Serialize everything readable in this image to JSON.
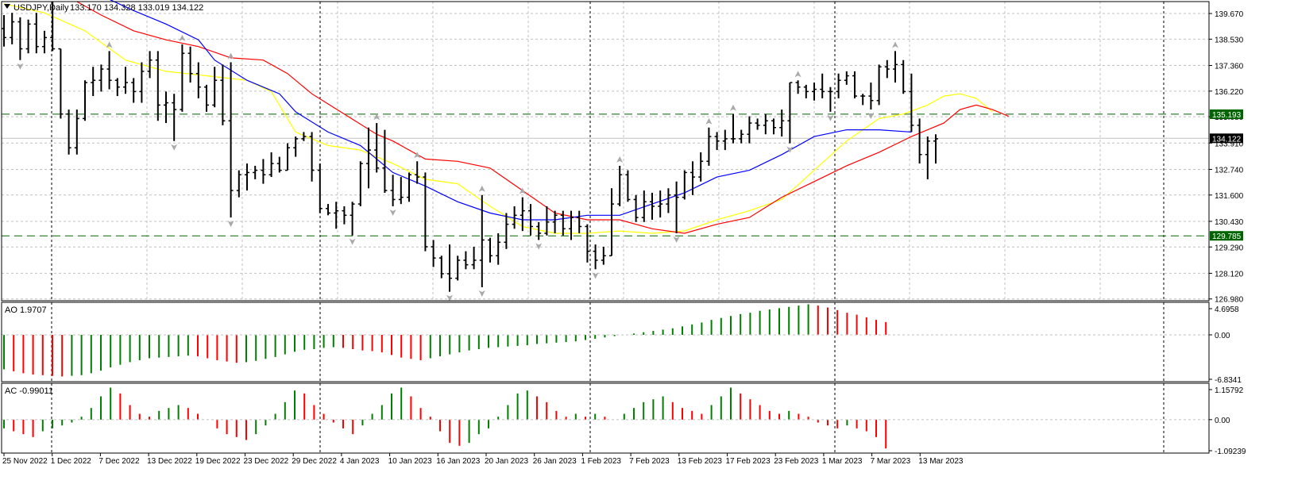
{
  "header": {
    "symbol": "USDJPY,Daily",
    "ohlc": "133.170 134.328 133.019 134.122"
  },
  "colors": {
    "bar": "#000000",
    "ma_fast": "#ffff00",
    "ma_mid": "#ff0000",
    "ma_slow": "#0000ff",
    "level_line": "#006400",
    "level_label_bg": "#006400",
    "price_label_bg": "#000000",
    "ao_up": "#008000",
    "ao_down": "#ff0000",
    "grid": "#c0c0c0",
    "fractal": "#a9a9a9"
  },
  "chart_data": [
    {
      "type": "ohlc",
      "price_axis_ticks": [
        "139.670",
        "138.530",
        "137.360",
        "136.220",
        "135.080",
        "133.910",
        "132.740",
        "131.600",
        "130.430",
        "129.290",
        "128.120",
        "126.980"
      ],
      "ylim": [
        126.9,
        140.2
      ],
      "date_labels": [
        "25 Nov 2022",
        "1 Dec 2022",
        "7 Dec 2022",
        "13 Dec 2022",
        "19 Dec 2022",
        "23 Dec 2022",
        "29 Dec 2022",
        "4 Jan 2023",
        "10 Jan 2023",
        "16 Jan 2023",
        "20 Jan 2023",
        "26 Jan 2023",
        "1 Feb 2023",
        "7 Feb 2023",
        "13 Feb 2023",
        "17 Feb 2023",
        "23 Feb 2023",
        "1 Mar 2023",
        "7 Mar 2023",
        "13 Mar 2023"
      ],
      "levels": [
        {
          "value": 135.193,
          "label": "135.193"
        },
        {
          "value": 129.785,
          "label": "129.785"
        }
      ],
      "current_price": {
        "value": 134.122,
        "label": "134.122"
      },
      "bars": [
        [
          139.0,
          139.6,
          138.2,
          138.6
        ],
        [
          138.6,
          139.7,
          138.3,
          139.3
        ],
        [
          139.3,
          139.5,
          137.6,
          138.1
        ],
        [
          138.1,
          139.4,
          137.9,
          139.2
        ],
        [
          139.2,
          139.7,
          137.9,
          138.2
        ],
        [
          138.2,
          138.9,
          137.9,
          138.6
        ],
        [
          138.6,
          140.2,
          138.0,
          138.1
        ],
        [
          138.1,
          138.1,
          135.0,
          135.2
        ],
        [
          135.2,
          135.4,
          133.4,
          133.7
        ],
        [
          133.7,
          135.4,
          133.4,
          135.0
        ],
        [
          135.0,
          136.7,
          134.9,
          136.6
        ],
        [
          136.6,
          137.3,
          136.0,
          136.7
        ],
        [
          136.7,
          137.4,
          136.2,
          137.2
        ],
        [
          137.2,
          138.0,
          136.3,
          136.7
        ],
        [
          136.7,
          136.8,
          136.0,
          136.4
        ],
        [
          136.4,
          137.3,
          136.1,
          136.6
        ],
        [
          136.6,
          136.8,
          135.7,
          136.2
        ],
        [
          136.2,
          137.5,
          135.7,
          137.1
        ],
        [
          137.1,
          138.0,
          136.8,
          137.6
        ],
        [
          137.6,
          138.0,
          134.9,
          135.6
        ],
        [
          135.6,
          136.2,
          134.8,
          135.7
        ],
        [
          135.7,
          136.1,
          134.0,
          135.4
        ],
        [
          135.4,
          138.3,
          135.3,
          137.9
        ],
        [
          137.9,
          138.2,
          136.6,
          137.0
        ],
        [
          137.0,
          137.5,
          135.9,
          136.4
        ],
        [
          136.4,
          136.5,
          135.3,
          135.6
        ],
        [
          135.6,
          137.3,
          135.5,
          136.7
        ],
        [
          136.7,
          137.4,
          134.7,
          134.9
        ],
        [
          134.9,
          137.5,
          130.6,
          131.8
        ],
        [
          131.8,
          132.7,
          131.5,
          132.5
        ],
        [
          132.5,
          133.0,
          131.8,
          132.6
        ],
        [
          132.6,
          132.9,
          132.3,
          132.7
        ],
        [
          132.7,
          133.2,
          132.1,
          132.5
        ],
        [
          132.5,
          133.5,
          132.4,
          133.0
        ],
        [
          133.0,
          133.3,
          132.6,
          132.7
        ],
        [
          132.7,
          133.9,
          132.7,
          133.7
        ],
        [
          133.7,
          134.2,
          133.3,
          134.1
        ],
        [
          134.1,
          134.4,
          134.0,
          134.2
        ],
        [
          134.2,
          134.4,
          132.2,
          132.7
        ],
        [
          132.7,
          133.0,
          130.8,
          131.0
        ],
        [
          131.0,
          131.2,
          130.7,
          130.8
        ],
        [
          130.8,
          131.3,
          130.1,
          130.9
        ],
        [
          130.9,
          131.1,
          130.3,
          130.7
        ],
        [
          130.7,
          131.3,
          129.8,
          131.2
        ],
        [
          131.2,
          133.1,
          131.1,
          133.0
        ],
        [
          133.0,
          134.6,
          131.9,
          133.6
        ],
        [
          133.6,
          134.8,
          132.6,
          132.8
        ],
        [
          132.8,
          134.5,
          131.7,
          131.8
        ],
        [
          131.8,
          132.5,
          131.1,
          131.4
        ],
        [
          131.4,
          132.4,
          131.2,
          131.5
        ],
        [
          131.5,
          132.6,
          131.3,
          132.5
        ],
        [
          132.5,
          133.1,
          132.1,
          132.4
        ],
        [
          132.4,
          132.6,
          129.1,
          129.3
        ],
        [
          129.3,
          129.6,
          128.4,
          128.8
        ],
        [
          128.8,
          128.9,
          127.9,
          128.1
        ],
        [
          128.1,
          129.4,
          127.3,
          127.9
        ],
        [
          127.9,
          128.9,
          127.8,
          128.7
        ],
        [
          128.7,
          129.1,
          128.3,
          128.5
        ],
        [
          128.5,
          129.3,
          128.3,
          128.7
        ],
        [
          128.7,
          131.6,
          127.5,
          129.6
        ],
        [
          129.6,
          129.7,
          128.6,
          128.9
        ],
        [
          128.9,
          129.9,
          128.5,
          129.5
        ],
        [
          129.5,
          130.8,
          129.2,
          130.3
        ],
        [
          130.3,
          131.1,
          130.1,
          130.7
        ],
        [
          130.7,
          131.5,
          130.0,
          130.9
        ],
        [
          130.9,
          131.2,
          129.8,
          130.2
        ],
        [
          130.2,
          130.4,
          129.6,
          129.9
        ],
        [
          129.9,
          131.1,
          129.8,
          130.4
        ],
        [
          130.4,
          130.9,
          129.9,
          130.7
        ],
        [
          130.7,
          130.9,
          129.8,
          130.1
        ],
        [
          130.1,
          130.9,
          129.6,
          130.6
        ],
        [
          130.6,
          130.9,
          129.9,
          130.2
        ],
        [
          130.2,
          130.3,
          128.6,
          129.1
        ],
        [
          129.1,
          129.4,
          128.3,
          128.7
        ],
        [
          128.7,
          129.3,
          128.5,
          128.9
        ],
        [
          128.9,
          131.9,
          128.9,
          131.2
        ],
        [
          131.2,
          132.9,
          131.1,
          132.5
        ],
        [
          132.5,
          132.7,
          131.3,
          131.4
        ],
        [
          131.4,
          131.6,
          130.4,
          130.6
        ],
        [
          130.6,
          131.8,
          130.4,
          131.3
        ],
        [
          131.3,
          131.7,
          130.5,
          131.1
        ],
        [
          131.1,
          131.8,
          130.6,
          131.2
        ],
        [
          131.2,
          131.9,
          130.8,
          131.6
        ],
        [
          131.6,
          132.2,
          129.9,
          131.5
        ],
        [
          131.5,
          132.7,
          131.4,
          132.6
        ],
        [
          132.6,
          133.1,
          131.6,
          132.4
        ],
        [
          132.4,
          133.5,
          132.2,
          133.1
        ],
        [
          133.1,
          134.6,
          132.9,
          134.2
        ],
        [
          134.2,
          134.4,
          133.6,
          134.0
        ],
        [
          134.0,
          134.5,
          133.6,
          134.1
        ],
        [
          134.1,
          135.2,
          133.9,
          134.1
        ],
        [
          134.1,
          134.5,
          133.9,
          134.3
        ],
        [
          134.3,
          135.1,
          133.9,
          134.8
        ],
        [
          134.8,
          135.0,
          134.5,
          134.7
        ],
        [
          134.7,
          135.2,
          134.3,
          134.9
        ],
        [
          134.9,
          135.0,
          134.3,
          134.6
        ],
        [
          134.6,
          135.4,
          134.2,
          134.9
        ],
        [
          134.9,
          136.6,
          133.9,
          136.6
        ],
        [
          136.6,
          136.7,
          136.1,
          136.4
        ],
        [
          136.4,
          136.5,
          135.9,
          136.2
        ],
        [
          136.2,
          136.6,
          135.8,
          136.3
        ],
        [
          136.3,
          137.0,
          135.9,
          136.2
        ],
        [
          136.2,
          136.4,
          135.3,
          136.2
        ],
        [
          136.2,
          137.0,
          135.9,
          136.7
        ],
        [
          136.7,
          137.1,
          136.5,
          136.9
        ],
        [
          136.9,
          137.1,
          135.9,
          136.0
        ],
        [
          136.0,
          136.1,
          135.6,
          136.0
        ],
        [
          136.0,
          136.6,
          135.4,
          135.8
        ],
        [
          135.8,
          137.4,
          135.6,
          137.3
        ],
        [
          137.3,
          137.6,
          136.8,
          137.2
        ],
        [
          137.2,
          138.0,
          136.6,
          137.4
        ],
        [
          137.4,
          137.6,
          136.1,
          136.2
        ],
        [
          136.2,
          137.0,
          134.4,
          134.7
        ],
        [
          134.7,
          135.0,
          133.0,
          133.4
        ],
        [
          133.4,
          134.2,
          132.3,
          134.0
        ],
        [
          134.0,
          134.3,
          133.0,
          134.1
        ]
      ],
      "ma_fast": [
        [
          0,
          140.1
        ],
        [
          5,
          139.7
        ],
        [
          10,
          138.9
        ],
        [
          15,
          137.6
        ],
        [
          20,
          137.1
        ],
        [
          25,
          136.9
        ],
        [
          30,
          136.7
        ],
        [
          33,
          136.2
        ],
        [
          36,
          134.4
        ],
        [
          40,
          133.8
        ],
        [
          44,
          133.6
        ],
        [
          48,
          133.0
        ],
        [
          52,
          132.3
        ],
        [
          56,
          132.1
        ],
        [
          60,
          131.1
        ],
        [
          64,
          130.2
        ],
        [
          68,
          129.9
        ],
        [
          72,
          129.9
        ],
        [
          76,
          130.0
        ],
        [
          80,
          129.9
        ],
        [
          84,
          130.0
        ],
        [
          88,
          130.5
        ],
        [
          92,
          130.9
        ],
        [
          96,
          131.4
        ],
        [
          100,
          132.7
        ],
        [
          104,
          134.0
        ],
        [
          108,
          135.0
        ],
        [
          111,
          135.2
        ],
        [
          114,
          135.6
        ],
        [
          116,
          136.0
        ],
        [
          118,
          136.1
        ],
        [
          120,
          135.9
        ],
        [
          122,
          135.3
        ]
      ],
      "ma_mid": [
        [
          9,
          140.2
        ],
        [
          12,
          139.6
        ],
        [
          16,
          138.9
        ],
        [
          20,
          138.5
        ],
        [
          24,
          138.2
        ],
        [
          28,
          137.7
        ],
        [
          32,
          137.6
        ],
        [
          35,
          137.0
        ],
        [
          38,
          136.1
        ],
        [
          42,
          135.2
        ],
        [
          46,
          134.3
        ],
        [
          48,
          134.0
        ],
        [
          52,
          133.2
        ],
        [
          56,
          133.1
        ],
        [
          60,
          132.8
        ],
        [
          64,
          131.8
        ],
        [
          68,
          130.8
        ],
        [
          72,
          130.5
        ],
        [
          76,
          130.5
        ],
        [
          80,
          130.1
        ],
        [
          84,
          129.9
        ],
        [
          88,
          130.3
        ],
        [
          92,
          130.6
        ],
        [
          96,
          131.5
        ],
        [
          100,
          132.2
        ],
        [
          104,
          132.9
        ],
        [
          108,
          133.5
        ],
        [
          112,
          134.2
        ],
        [
          116,
          134.8
        ],
        [
          118,
          135.4
        ],
        [
          120,
          135.6
        ],
        [
          122,
          135.4
        ],
        [
          124,
          135.1
        ]
      ],
      "ma_slow": [
        [
          13,
          140.3
        ],
        [
          16,
          139.8
        ],
        [
          20,
          139.2
        ],
        [
          24,
          138.5
        ],
        [
          26,
          137.6
        ],
        [
          30,
          136.7
        ],
        [
          34,
          136.1
        ],
        [
          36,
          135.3
        ],
        [
          40,
          134.4
        ],
        [
          44,
          133.8
        ],
        [
          48,
          132.6
        ],
        [
          52,
          132.0
        ],
        [
          56,
          131.3
        ],
        [
          60,
          130.8
        ],
        [
          64,
          130.5
        ],
        [
          68,
          130.5
        ],
        [
          72,
          130.7
        ],
        [
          76,
          130.7
        ],
        [
          80,
          131.2
        ],
        [
          84,
          131.7
        ],
        [
          88,
          132.4
        ],
        [
          92,
          132.7
        ],
        [
          96,
          133.4
        ],
        [
          100,
          134.2
        ],
        [
          104,
          134.5
        ],
        [
          108,
          134.5
        ],
        [
          112,
          134.4
        ]
      ]
    },
    {
      "type": "bar",
      "title": "AO 1.9707",
      "axis_ticks": [
        "4.6958",
        "0.00",
        "-6.8341"
      ],
      "ylim": [
        -7.2,
        5.0
      ],
      "values": [
        -5.3,
        -5.6,
        -5.9,
        -6.1,
        -6.2,
        -6.3,
        -6.4,
        -6.3,
        -6.2,
        -5.9,
        -5.5,
        -5.0,
        -4.6,
        -4.2,
        -3.9,
        -3.6,
        -3.5,
        -3.4,
        -3.3,
        -3.2,
        -3.3,
        -3.6,
        -3.9,
        -4.1,
        -4.3,
        -4.2,
        -4.0,
        -3.7,
        -3.4,
        -3.0,
        -2.6,
        -2.3,
        -2.2,
        -2.0,
        -1.9,
        -2.0,
        -2.2,
        -2.4,
        -2.5,
        -2.7,
        -3.1,
        -3.5,
        -3.7,
        -3.9,
        -3.6,
        -3.3,
        -3.0,
        -2.7,
        -2.4,
        -2.2,
        -2.0,
        -1.9,
        -1.8,
        -1.7,
        -1.6,
        -1.4,
        -1.3,
        -1.2,
        -1.1,
        -1.0,
        -0.8,
        -0.6,
        -0.4,
        -0.2,
        0.0,
        0.2,
        0.4,
        0.6,
        0.8,
        1.0,
        1.3,
        1.6,
        1.9,
        2.3,
        2.6,
        2.9,
        3.2,
        3.4,
        3.7,
        3.9,
        4.1,
        4.3,
        4.5,
        4.7,
        4.5,
        4.2,
        3.8,
        3.4,
        3.1,
        2.7,
        2.3,
        1.97
      ]
    },
    {
      "type": "bar",
      "title": "AC -0.99011",
      "axis_ticks": [
        "1.15792",
        "0.00",
        "-1.09239"
      ],
      "ylim": [
        -1.15,
        1.25
      ],
      "values": [
        -0.3,
        -0.4,
        -0.5,
        -0.6,
        -0.4,
        -0.3,
        -0.2,
        -0.1,
        0.1,
        0.4,
        0.8,
        1.1,
        0.9,
        0.5,
        0.2,
        0.1,
        0.3,
        0.4,
        0.5,
        0.4,
        0.2,
        0.0,
        -0.3,
        -0.5,
        -0.6,
        -0.7,
        -0.5,
        -0.2,
        0.2,
        0.6,
        1.0,
        0.9,
        0.5,
        0.2,
        -0.1,
        -0.3,
        -0.5,
        -0.2,
        0.2,
        0.5,
        0.9,
        1.1,
        0.8,
        0.4,
        0.1,
        -0.4,
        -0.8,
        -0.9,
        -0.8,
        -0.5,
        -0.3,
        0.1,
        0.5,
        0.9,
        1.0,
        0.8,
        0.6,
        0.3,
        0.1,
        0.2,
        0.1,
        0.2,
        0.1,
        0.0,
        0.2,
        0.4,
        0.6,
        0.7,
        0.8,
        0.6,
        0.4,
        0.3,
        0.2,
        0.5,
        0.8,
        1.1,
        0.9,
        0.7,
        0.5,
        0.3,
        0.2,
        0.3,
        0.2,
        0.1,
        -0.1,
        -0.2,
        -0.3,
        -0.2,
        -0.3,
        -0.4,
        -0.6,
        -0.99
      ]
    }
  ]
}
